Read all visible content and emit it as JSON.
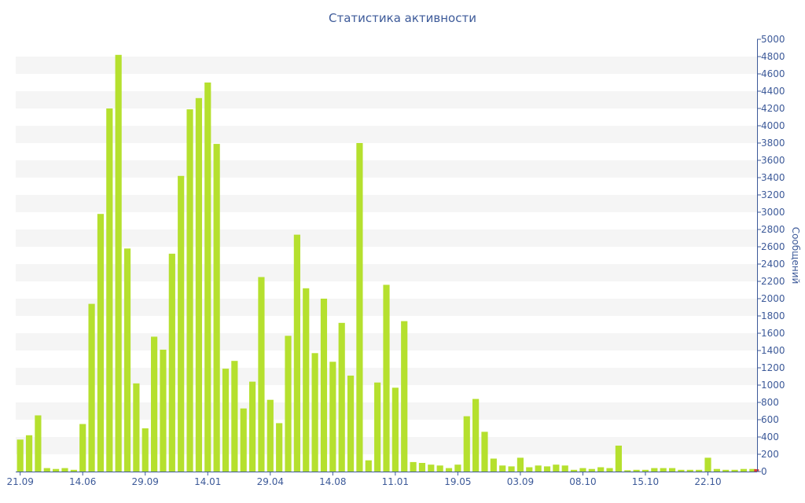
{
  "chart_data": {
    "type": "bar",
    "title": "Статистика активности",
    "xlabel": "",
    "ylabel": "Сообщений",
    "ylim": [
      0,
      5000
    ],
    "ytick_step": 200,
    "grid": "horizontal bands",
    "x_tick_labels": [
      {
        "label": "21.09",
        "index": 0
      },
      {
        "label": "14.06",
        "index": 7
      },
      {
        "label": "29.09",
        "index": 14
      },
      {
        "label": "14.01",
        "index": 21
      },
      {
        "label": "29.04",
        "index": 28
      },
      {
        "label": "14.08",
        "index": 35
      },
      {
        "label": "11.01",
        "index": 42
      },
      {
        "label": "19.05",
        "index": 49
      },
      {
        "label": "03.09",
        "index": 56
      },
      {
        "label": "08.10",
        "index": 63
      },
      {
        "label": "15.10",
        "index": 70
      },
      {
        "label": "22.10",
        "index": 77
      }
    ],
    "series": [
      {
        "values": [
          370,
          420,
          650,
          40,
          30,
          40,
          20,
          550,
          1940,
          2980,
          4200,
          4820,
          2580,
          1020,
          500,
          1560,
          1410,
          2520,
          3420,
          4190,
          4320,
          4500,
          3790,
          1190,
          1280,
          730,
          1040,
          2250,
          830,
          560,
          1570,
          2740,
          2120,
          1370,
          2000,
          1270,
          1720,
          1110,
          3800,
          130,
          1030,
          2160,
          970,
          1740,
          110,
          100,
          80,
          70,
          40,
          80,
          640,
          840,
          460,
          150,
          70,
          60,
          160,
          50,
          70,
          60,
          80,
          70,
          20,
          40,
          30,
          50,
          40,
          300,
          15,
          20,
          20,
          40,
          40,
          40,
          20,
          20,
          20,
          160,
          30,
          20,
          20,
          30,
          30
        ],
        "color": "#b5e02e"
      }
    ],
    "last_point_marker_color": "#e03a3a"
  }
}
